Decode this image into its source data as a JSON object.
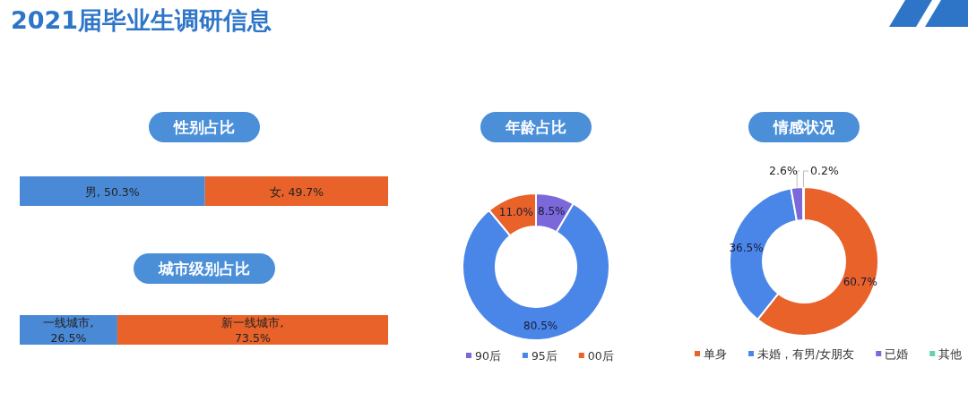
{
  "chart_data": [
    {
      "type": "bar",
      "orientation": "horizontal",
      "stacked": true,
      "title": "性别占比",
      "annotations": [
        "2021届毕业生调研信息"
      ],
      "categories": [
        null
      ],
      "xlim": [
        0,
        100
      ],
      "tick_labels": false,
      "series": [
        {
          "color": "#4a89d6",
          "values": [
            50.3
          ],
          "value_labels": [
            "男, 50.3%"
          ]
        },
        {
          "color": "#e8622a",
          "values": [
            49.7
          ],
          "value_labels": [
            "女, 49.7%"
          ]
        }
      ]
    },
    {
      "type": "bar",
      "orientation": "horizontal",
      "stacked": true,
      "title": "城市级别占比",
      "categories": [
        null
      ],
      "xlim": [
        0,
        100
      ],
      "tick_labels": false,
      "series": [
        {
          "color": "#4a89d6",
          "values": [
            26.5
          ],
          "value_labels": [
            "一线城市,\n26.5%"
          ]
        },
        {
          "color": "#e8622a",
          "values": [
            73.5
          ],
          "value_labels": [
            "新一线城市,\n73.5%"
          ]
        }
      ]
    },
    {
      "type": "donut",
      "title": "年龄占比",
      "legend": "bottom",
      "categories": [
        "90后",
        "95后",
        "00后"
      ],
      "values": [
        8.5,
        80.5,
        11.0
      ],
      "value_labels": [
        "8.5%",
        "80.5%",
        "11.0%"
      ],
      "colors": [
        "#7b68d9",
        "#4a86e8",
        "#e8622a"
      ]
    },
    {
      "type": "donut",
      "title": "情感状况",
      "legend": "bottom",
      "categories": [
        "单身",
        "未婚，有男/女朋友",
        "已婚",
        "其他"
      ],
      "values": [
        60.7,
        36.5,
        2.6,
        0.2
      ],
      "value_labels": [
        "60.7%",
        "36.5%",
        "2.6%",
        "0.2%"
      ],
      "colors": [
        "#e8622a",
        "#4a86e8",
        "#7b68d9",
        "#5fd3b3"
      ]
    }
  ]
}
